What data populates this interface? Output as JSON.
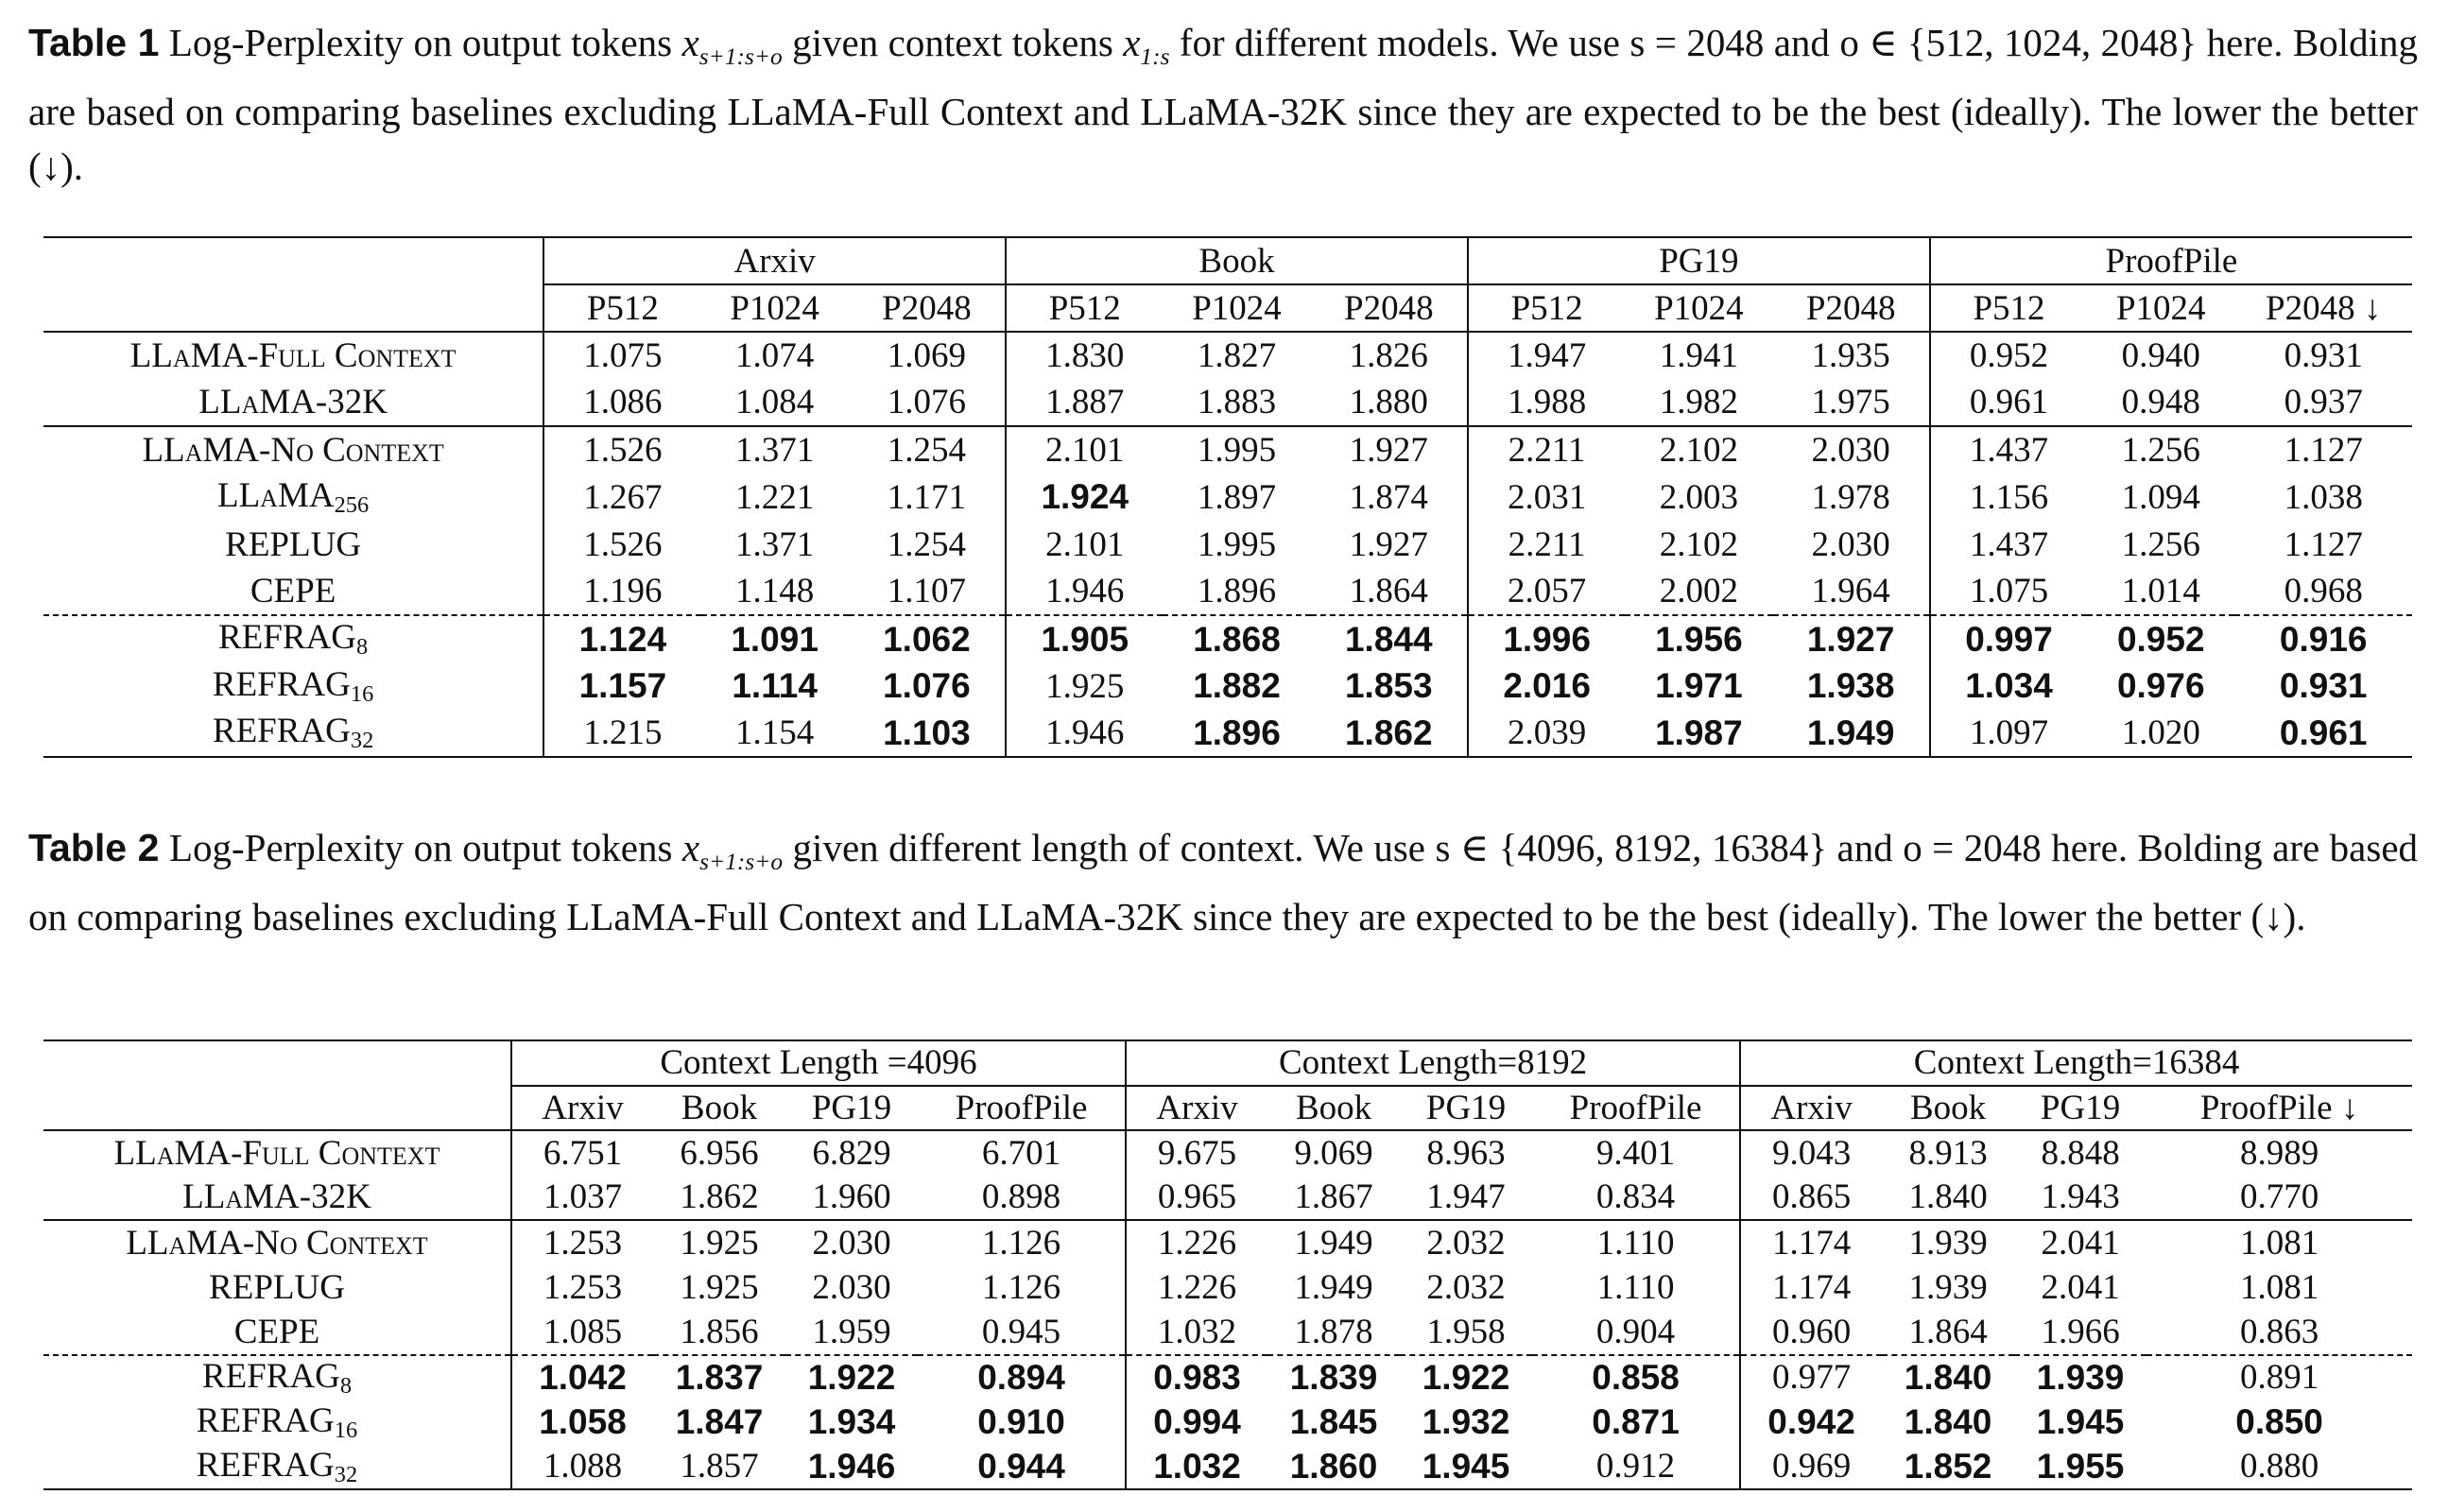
{
  "table1": {
    "caption_label": "Table 1",
    "caption_a": "Log-Perplexity on output tokens",
    "caption_b": "given context tokens",
    "caption_c": "for different models. We use",
    "caption_d": "here. Bolding are based on comparing baselines excluding LLaMA-Full Context and LLaMA-32K since they are expected to be the best (ideally). The lower the better (↓).",
    "math_output_tokens": "x",
    "math_output_sub": "s+1:s+o",
    "math_context_tokens": "x",
    "math_context_sub": "1:s",
    "math_settings": "s = 2048 and o ∈ {512, 1024, 2048}",
    "groups": [
      "Arxiv",
      "Book",
      "PG19",
      "ProofPile"
    ],
    "subcolumns": [
      "P512",
      "P1024",
      "P2048",
      "P512",
      "P1024",
      "P2048",
      "P512",
      "P1024",
      "P2048",
      "P512",
      "P1024",
      "P2048 ↓"
    ],
    "rows": [
      {
        "name": "LLaMA-Full Context",
        "sub": "",
        "values": [
          "1.075",
          "1.074",
          "1.069",
          "1.830",
          "1.827",
          "1.826",
          "1.947",
          "1.941",
          "1.935",
          "0.952",
          "0.940",
          "0.931"
        ],
        "bold": [
          0,
          0,
          0,
          0,
          0,
          0,
          0,
          0,
          0,
          0,
          0,
          0
        ]
      },
      {
        "name": "LLaMA-32K",
        "sub": "",
        "values": [
          "1.086",
          "1.084",
          "1.076",
          "1.887",
          "1.883",
          "1.880",
          "1.988",
          "1.982",
          "1.975",
          "0.961",
          "0.948",
          "0.937"
        ],
        "bold": [
          0,
          0,
          0,
          0,
          0,
          0,
          0,
          0,
          0,
          0,
          0,
          0
        ]
      },
      {
        "name": "LLaMA-No Context",
        "sub": "",
        "values": [
          "1.526",
          "1.371",
          "1.254",
          "2.101",
          "1.995",
          "1.927",
          "2.211",
          "2.102",
          "2.030",
          "1.437",
          "1.256",
          "1.127"
        ],
        "bold": [
          0,
          0,
          0,
          0,
          0,
          0,
          0,
          0,
          0,
          0,
          0,
          0
        ]
      },
      {
        "name": "LLaMA",
        "sub": "256",
        "values": [
          "1.267",
          "1.221",
          "1.171",
          "1.924",
          "1.897",
          "1.874",
          "2.031",
          "2.003",
          "1.978",
          "1.156",
          "1.094",
          "1.038"
        ],
        "bold": [
          0,
          0,
          0,
          1,
          0,
          0,
          0,
          0,
          0,
          0,
          0,
          0
        ]
      },
      {
        "name": "REPLUG",
        "sub": "",
        "values": [
          "1.526",
          "1.371",
          "1.254",
          "2.101",
          "1.995",
          "1.927",
          "2.211",
          "2.102",
          "2.030",
          "1.437",
          "1.256",
          "1.127"
        ],
        "bold": [
          0,
          0,
          0,
          0,
          0,
          0,
          0,
          0,
          0,
          0,
          0,
          0
        ]
      },
      {
        "name": "CEPE",
        "sub": "",
        "values": [
          "1.196",
          "1.148",
          "1.107",
          "1.946",
          "1.896",
          "1.864",
          "2.057",
          "2.002",
          "1.964",
          "1.075",
          "1.014",
          "0.968"
        ],
        "bold": [
          0,
          0,
          0,
          0,
          0,
          0,
          0,
          0,
          0,
          0,
          0,
          0
        ]
      },
      {
        "name": "REFRAG",
        "sub": "8",
        "values": [
          "1.124",
          "1.091",
          "1.062",
          "1.905",
          "1.868",
          "1.844",
          "1.996",
          "1.956",
          "1.927",
          "0.997",
          "0.952",
          "0.916"
        ],
        "bold": [
          1,
          1,
          1,
          1,
          1,
          1,
          1,
          1,
          1,
          1,
          1,
          1
        ]
      },
      {
        "name": "REFRAG",
        "sub": "16",
        "values": [
          "1.157",
          "1.114",
          "1.076",
          "1.925",
          "1.882",
          "1.853",
          "2.016",
          "1.971",
          "1.938",
          "1.034",
          "0.976",
          "0.931"
        ],
        "bold": [
          1,
          1,
          1,
          0,
          1,
          1,
          1,
          1,
          1,
          1,
          1,
          1
        ]
      },
      {
        "name": "REFRAG",
        "sub": "32",
        "values": [
          "1.215",
          "1.154",
          "1.103",
          "1.946",
          "1.896",
          "1.862",
          "2.039",
          "1.987",
          "1.949",
          "1.097",
          "1.020",
          "0.961"
        ],
        "bold": [
          0,
          0,
          1,
          0,
          1,
          1,
          0,
          1,
          1,
          0,
          0,
          1
        ]
      }
    ]
  },
  "table2": {
    "caption_label": "Table 2",
    "caption_a": "Log-Perplexity on output tokens",
    "caption_b": "given different length of context. We use",
    "caption_c": "here. Bolding are based on comparing baselines excluding LLaMA-Full Context and LLaMA-32K since they are expected to be the best (ideally). The lower the better (↓).",
    "math_output_tokens": "x",
    "math_output_sub": "s+1:s+o",
    "math_settings": "s ∈ {4096, 8192, 16384} and o = 2048",
    "groups": [
      "Context Length =4096",
      "Context Length=8192",
      "Context Length=16384"
    ],
    "subcolumns": [
      "Arxiv",
      "Book",
      "PG19",
      "ProofPile",
      "Arxiv",
      "Book",
      "PG19",
      "ProofPile",
      "Arxiv",
      "Book",
      "PG19",
      "ProofPile ↓"
    ],
    "rows": [
      {
        "name": "LLaMA-Full Context",
        "sub": "",
        "values": [
          "6.751",
          "6.956",
          "6.829",
          "6.701",
          "9.675",
          "9.069",
          "8.963",
          "9.401",
          "9.043",
          "8.913",
          "8.848",
          "8.989"
        ],
        "bold": [
          0,
          0,
          0,
          0,
          0,
          0,
          0,
          0,
          0,
          0,
          0,
          0
        ]
      },
      {
        "name": "LLaMA-32K",
        "sub": "",
        "values": [
          "1.037",
          "1.862",
          "1.960",
          "0.898",
          "0.965",
          "1.867",
          "1.947",
          "0.834",
          "0.865",
          "1.840",
          "1.943",
          "0.770"
        ],
        "bold": [
          0,
          0,
          0,
          0,
          0,
          0,
          0,
          0,
          0,
          0,
          0,
          0
        ]
      },
      {
        "name": "LLaMA-No Context",
        "sub": "",
        "values": [
          "1.253",
          "1.925",
          "2.030",
          "1.126",
          "1.226",
          "1.949",
          "2.032",
          "1.110",
          "1.174",
          "1.939",
          "2.041",
          "1.081"
        ],
        "bold": [
          0,
          0,
          0,
          0,
          0,
          0,
          0,
          0,
          0,
          0,
          0,
          0
        ]
      },
      {
        "name": "REPLUG",
        "sub": "",
        "values": [
          "1.253",
          "1.925",
          "2.030",
          "1.126",
          "1.226",
          "1.949",
          "2.032",
          "1.110",
          "1.174",
          "1.939",
          "2.041",
          "1.081"
        ],
        "bold": [
          0,
          0,
          0,
          0,
          0,
          0,
          0,
          0,
          0,
          0,
          0,
          0
        ]
      },
      {
        "name": "CEPE",
        "sub": "",
        "values": [
          "1.085",
          "1.856",
          "1.959",
          "0.945",
          "1.032",
          "1.878",
          "1.958",
          "0.904",
          "0.960",
          "1.864",
          "1.966",
          "0.863"
        ],
        "bold": [
          0,
          0,
          0,
          0,
          0,
          0,
          0,
          0,
          0,
          0,
          0,
          0
        ]
      },
      {
        "name": "REFRAG",
        "sub": "8",
        "values": [
          "1.042",
          "1.837",
          "1.922",
          "0.894",
          "0.983",
          "1.839",
          "1.922",
          "0.858",
          "0.977",
          "1.840",
          "1.939",
          "0.891"
        ],
        "bold": [
          1,
          1,
          1,
          1,
          1,
          1,
          1,
          1,
          0,
          1,
          1,
          0
        ]
      },
      {
        "name": "REFRAG",
        "sub": "16",
        "values": [
          "1.058",
          "1.847",
          "1.934",
          "0.910",
          "0.994",
          "1.845",
          "1.932",
          "0.871",
          "0.942",
          "1.840",
          "1.945",
          "0.850"
        ],
        "bold": [
          1,
          1,
          1,
          1,
          1,
          1,
          1,
          1,
          1,
          1,
          1,
          1
        ]
      },
      {
        "name": "REFRAG",
        "sub": "32",
        "values": [
          "1.088",
          "1.857",
          "1.946",
          "0.944",
          "1.032",
          "1.860",
          "1.945",
          "0.912",
          "0.969",
          "1.852",
          "1.955",
          "0.880"
        ],
        "bold": [
          0,
          0,
          1,
          1,
          1,
          1,
          1,
          0,
          0,
          1,
          1,
          0
        ]
      }
    ]
  }
}
